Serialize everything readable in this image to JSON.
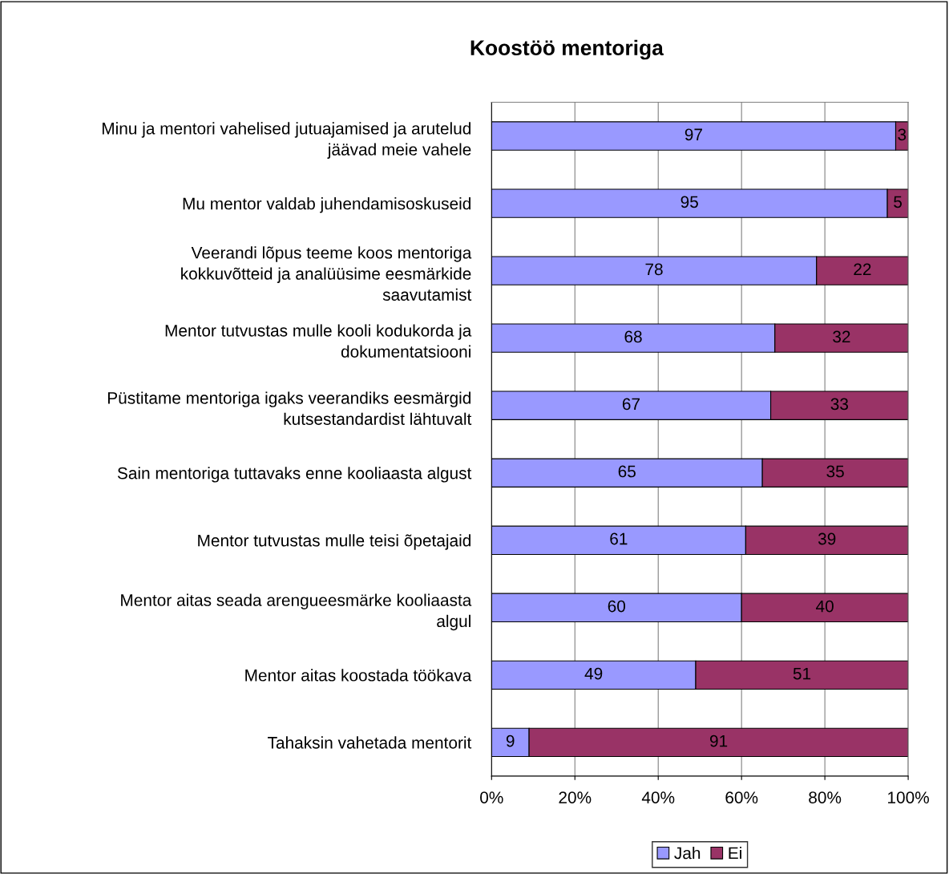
{
  "chart_data": {
    "type": "bar",
    "orientation": "horizontal",
    "stacked": true,
    "title": "Koostöö mentoriga",
    "categories": [
      "Minu ja mentori vahelised jutuajamised ja arutelud\njäävad meie vahele",
      "Mu mentor valdab juhendamisoskuseid",
      "Veerandi lõpus teeme koos mentoriga\nkokkuvõtteid ja analüüsime eesmärkide\nsaavutamist",
      "Mentor tutvustas mulle kooli kodukorda ja\ndokumentatsiooni",
      "Püstitame mentoriga igaks veerandiks eesmärgid\nkutsestandardist lähtuvalt",
      "Sain mentoriga tuttavaks enne kooliaasta algust",
      "Mentor tutvustas mulle teisi õpetajaid",
      "Mentor aitas seada arengueesmärke kooliaasta\nalgul",
      "Mentor aitas koostada töökava",
      "Tahaksin vahetada mentorit"
    ],
    "series": [
      {
        "name": "Jah",
        "color": "#9999ff",
        "values": [
          97,
          95,
          78,
          68,
          67,
          65,
          61,
          60,
          49,
          9
        ]
      },
      {
        "name": "Ei",
        "color": "#993366",
        "values": [
          3,
          5,
          22,
          32,
          33,
          35,
          39,
          40,
          51,
          91
        ]
      }
    ],
    "xlim": [
      0,
      100
    ],
    "xticks": [
      {
        "value": 0,
        "label": "0%"
      },
      {
        "value": 20,
        "label": "20%"
      },
      {
        "value": 40,
        "label": "40%"
      },
      {
        "value": 60,
        "label": "60%"
      },
      {
        "value": 80,
        "label": "80%"
      },
      {
        "value": 100,
        "label": "100%"
      }
    ],
    "grid": "x",
    "legend": "bottom",
    "data_labels": true
  }
}
